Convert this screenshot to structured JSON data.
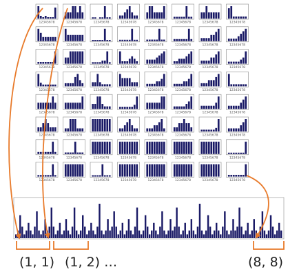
{
  "grid": {
    "rows": 8,
    "cols": 8,
    "bins": 8,
    "tick_labels": "12345678",
    "bar_color": "#1a1a66",
    "histograms": [
      [
        [
          9,
          2,
          1,
          2,
          1,
          1,
          1,
          8
        ],
        [
          1,
          1,
          1,
          2,
          2,
          1,
          2,
          1
        ],
        [
          1,
          1,
          0,
          1,
          1,
          10,
          1,
          1
        ],
        [
          1,
          1,
          2,
          3,
          4,
          2,
          1,
          1
        ],
        [
          1,
          2,
          2,
          1,
          1,
          1,
          1,
          2
        ],
        [
          1,
          1,
          1,
          1,
          1,
          7,
          1,
          1
        ],
        [
          1,
          1,
          2,
          1,
          1,
          1,
          1,
          1
        ],
        [
          5,
          6,
          1,
          1,
          1,
          1,
          1,
          1
        ]
      ],
      [
        [
          3,
          2,
          1,
          1,
          1,
          1,
          1,
          1
        ],
        [
          2,
          1,
          1,
          1,
          1,
          1,
          1,
          1
        ],
        [
          1,
          1,
          1,
          1,
          1,
          10,
          1,
          1
        ],
        [
          1,
          1,
          1,
          1,
          1,
          9,
          1,
          1
        ],
        [
          1,
          1,
          1,
          1,
          1,
          8,
          1,
          1
        ],
        [
          1,
          1,
          1,
          1,
          1,
          1,
          6,
          1
        ],
        [
          1,
          1,
          1,
          1,
          2,
          2,
          3,
          4
        ],
        [
          1,
          1,
          1,
          1,
          2,
          3,
          4,
          5
        ]
      ],
      [
        [
          1,
          1,
          1,
          1,
          1,
          1,
          1,
          7
        ],
        [
          1,
          1,
          2,
          2,
          2,
          2,
          2,
          2
        ],
        [
          1,
          1,
          1,
          1,
          2,
          2,
          8,
          1
        ],
        [
          5,
          1,
          1,
          1,
          2,
          3,
          2,
          1
        ],
        [
          2,
          2,
          2,
          2,
          3,
          4,
          5,
          6
        ],
        [
          1,
          1,
          2,
          2,
          2,
          3,
          4,
          5
        ],
        [
          1,
          1,
          1,
          1,
          2,
          2,
          3,
          4
        ],
        [
          1,
          1,
          1,
          1,
          1,
          2,
          3,
          6
        ]
      ],
      [
        [
          7,
          2,
          1,
          1,
          1,
          1,
          1,
          1
        ],
        [
          1,
          1,
          1,
          1,
          3,
          4,
          2,
          1
        ],
        [
          2,
          2,
          6,
          2,
          1,
          1,
          1,
          1
        ],
        [
          3,
          2,
          2,
          2,
          2,
          1,
          1,
          1
        ],
        [
          1,
          1,
          1,
          1,
          2,
          2,
          3,
          5
        ],
        [
          1,
          1,
          1,
          1,
          2,
          2,
          3,
          5
        ],
        [
          1,
          1,
          1,
          2,
          2,
          2,
          3,
          4
        ],
        [
          6,
          1,
          1,
          1,
          1,
          1,
          1,
          1
        ]
      ],
      [
        [
          1,
          1,
          1,
          1,
          1,
          1,
          2,
          1
        ],
        [
          1,
          1,
          1,
          1,
          1,
          1,
          1,
          2
        ],
        [
          2,
          2,
          5,
          5,
          2,
          1,
          1,
          1
        ],
        [
          1,
          1,
          1,
          1,
          1,
          1,
          2,
          6
        ],
        [
          1,
          1,
          1,
          1,
          1,
          1,
          2,
          2
        ],
        [
          1,
          1,
          1,
          1,
          1,
          2,
          3,
          5
        ],
        [
          1,
          1,
          1,
          1,
          1,
          1,
          2,
          4
        ],
        [
          1,
          1,
          1,
          1,
          1,
          2,
          3,
          4
        ]
      ],
      [
        [
          1,
          1,
          2,
          3,
          2,
          1,
          1,
          1
        ],
        [
          1,
          1,
          4,
          4,
          4,
          1,
          1,
          1
        ],
        [
          1,
          1,
          1,
          1,
          1,
          1,
          1,
          1
        ],
        [
          1,
          1,
          2,
          3,
          4,
          2,
          1,
          1
        ],
        [
          1,
          1,
          1,
          2,
          2,
          3,
          4,
          1
        ],
        [
          1,
          1,
          2,
          2,
          3,
          2,
          2,
          1
        ],
        [
          1,
          1,
          1,
          1,
          1,
          1,
          2,
          7
        ],
        [
          1,
          1,
          1,
          1,
          1,
          2,
          3,
          4
        ]
      ],
      [
        [
          1,
          1,
          1,
          1,
          1,
          1,
          6,
          1
        ],
        [
          1,
          1,
          1,
          1,
          8,
          1,
          1,
          1
        ],
        [
          1,
          1,
          1,
          1,
          1,
          1,
          1,
          1
        ],
        [
          1,
          1,
          1,
          1,
          1,
          1,
          1,
          1
        ],
        [
          1,
          1,
          1,
          1,
          1,
          1,
          1,
          1
        ],
        [
          1,
          1,
          1,
          1,
          1,
          1,
          1,
          1
        ],
        [
          1,
          1,
          1,
          1,
          1,
          1,
          1,
          1
        ],
        [
          1,
          1,
          1,
          1,
          1,
          1,
          1,
          9
        ]
      ],
      [
        [
          1,
          1,
          1,
          1,
          1,
          1,
          8,
          1
        ],
        [
          1,
          1,
          1,
          1,
          1,
          1,
          1,
          1
        ],
        [
          1,
          1,
          1,
          1,
          9,
          1,
          1,
          1
        ],
        [
          1,
          1,
          1,
          1,
          1,
          1,
          1,
          1
        ],
        [
          1,
          1,
          1,
          1,
          1,
          1,
          1,
          1
        ],
        [
          1,
          1,
          1,
          1,
          1,
          1,
          1,
          1
        ],
        [
          1,
          1,
          1,
          1,
          1,
          1,
          1,
          1
        ],
        [
          1,
          1,
          1,
          1,
          1,
          1,
          1,
          7
        ]
      ]
    ]
  },
  "long_histogram": {
    "bar_count": 128,
    "bar_color": "#1a1a66",
    "values": [
      1,
      2,
      6,
      3,
      1,
      2,
      4,
      2,
      1,
      3,
      7,
      2,
      1,
      2,
      5,
      2,
      3,
      8,
      3,
      1,
      2,
      4,
      1,
      2,
      5,
      2,
      1,
      3,
      8,
      2,
      1,
      2,
      6,
      3,
      1,
      2,
      4,
      2,
      1,
      3,
      9,
      2,
      1,
      2,
      5,
      2,
      3,
      7,
      3,
      1,
      2,
      4,
      1,
      2,
      5,
      2,
      1,
      3,
      8,
      2,
      1,
      2,
      6,
      3,
      1,
      2,
      4,
      2,
      1,
      3,
      7,
      2,
      1,
      2,
      5,
      2,
      3,
      8,
      3,
      1,
      2,
      4,
      1,
      2,
      5,
      2,
      1,
      3,
      9,
      2,
      1,
      2,
      6,
      3,
      1,
      2,
      4,
      2,
      1,
      3,
      7,
      2,
      1,
      2,
      5,
      2,
      3,
      8,
      3,
      1,
      2,
      4,
      1,
      2,
      5,
      2,
      1,
      3,
      7,
      2,
      1,
      2,
      6,
      3,
      1,
      2,
      4,
      2
    ]
  },
  "labels": {
    "first": "(1, 1)",
    "second": "(1, 2) …",
    "last": "(8, 8)"
  },
  "colors": {
    "arrow": "#e87a2a",
    "bracket": "#e87a2a",
    "frame": "#888888"
  }
}
